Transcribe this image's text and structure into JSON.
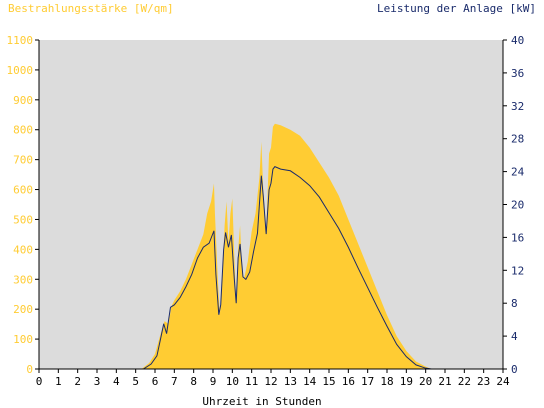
{
  "chart_data": {
    "type": "area",
    "title_left": "Bestrahlungsstärke [W/qm]",
    "title_right": "Leistung der Anlage [kW]",
    "xlabel": "Uhrzeit in Stunden",
    "x_ticks": [
      "0",
      "1",
      "2",
      "3",
      "4",
      "5",
      "6",
      "7",
      "8",
      "9",
      "10",
      "11",
      "12",
      "13",
      "14",
      "15",
      "16",
      "17",
      "18",
      "19",
      "20",
      "21",
      "22",
      "23",
      "24"
    ],
    "y_left_ticks": [
      "0",
      "100",
      "200",
      "300",
      "400",
      "500",
      "600",
      "700",
      "800",
      "900",
      "1000",
      "1100"
    ],
    "y_right_ticks": [
      "0",
      "4",
      "8",
      "12",
      "16",
      "20",
      "24",
      "28",
      "32",
      "36",
      "40"
    ],
    "xlim": [
      0,
      24
    ],
    "ylim_left": [
      0,
      1100
    ],
    "ylim_right": [
      0,
      40
    ],
    "grid": false,
    "series": [
      {
        "name": "Bestrahlungsstärke [W/qm]",
        "axis": "left",
        "color": "#ffcc33",
        "points": [
          [
            0,
            0
          ],
          [
            5.3,
            0
          ],
          [
            5.7,
            20
          ],
          [
            6.0,
            50
          ],
          [
            6.3,
            120
          ],
          [
            6.5,
            160
          ],
          [
            6.7,
            150
          ],
          [
            6.85,
            210
          ],
          [
            7.0,
            230
          ],
          [
            7.3,
            260
          ],
          [
            7.6,
            300
          ],
          [
            7.9,
            350
          ],
          [
            8.2,
            400
          ],
          [
            8.5,
            450
          ],
          [
            8.7,
            520
          ],
          [
            8.9,
            560
          ],
          [
            9.05,
            620
          ],
          [
            9.1,
            520
          ],
          [
            9.25,
            300
          ],
          [
            9.35,
            180
          ],
          [
            9.45,
            260
          ],
          [
            9.6,
            480
          ],
          [
            9.7,
            560
          ],
          [
            9.8,
            420
          ],
          [
            9.9,
            520
          ],
          [
            10.0,
            570
          ],
          [
            10.1,
            380
          ],
          [
            10.2,
            220
          ],
          [
            10.3,
            400
          ],
          [
            10.4,
            480
          ],
          [
            10.5,
            330
          ],
          [
            10.6,
            300
          ],
          [
            10.8,
            360
          ],
          [
            11.0,
            460
          ],
          [
            11.2,
            520
          ],
          [
            11.4,
            640
          ],
          [
            11.5,
            760
          ],
          [
            11.6,
            600
          ],
          [
            11.75,
            460
          ],
          [
            11.9,
            720
          ],
          [
            12.0,
            740
          ],
          [
            12.1,
            810
          ],
          [
            12.2,
            820
          ],
          [
            12.5,
            815
          ],
          [
            13.0,
            800
          ],
          [
            13.5,
            780
          ],
          [
            14.0,
            740
          ],
          [
            14.5,
            690
          ],
          [
            15.0,
            640
          ],
          [
            15.5,
            580
          ],
          [
            16.0,
            500
          ],
          [
            16.5,
            420
          ],
          [
            17.0,
            340
          ],
          [
            17.5,
            260
          ],
          [
            18.0,
            180
          ],
          [
            18.5,
            110
          ],
          [
            19.0,
            60
          ],
          [
            19.5,
            25
          ],
          [
            20.0,
            8
          ],
          [
            20.3,
            0
          ],
          [
            24,
            0
          ]
        ]
      },
      {
        "name": "Leistung der Anlage [kW]",
        "axis": "right",
        "color": "#1a2b6b",
        "points": [
          [
            0,
            0
          ],
          [
            5.4,
            0
          ],
          [
            5.8,
            0.6
          ],
          [
            6.1,
            1.6
          ],
          [
            6.3,
            3.8
          ],
          [
            6.45,
            5.5
          ],
          [
            6.6,
            4.3
          ],
          [
            6.8,
            7.5
          ],
          [
            7.0,
            7.8
          ],
          [
            7.3,
            8.7
          ],
          [
            7.6,
            10.0
          ],
          [
            7.9,
            11.5
          ],
          [
            8.2,
            13.5
          ],
          [
            8.5,
            14.8
          ],
          [
            8.8,
            15.3
          ],
          [
            8.95,
            16.2
          ],
          [
            9.05,
            16.8
          ],
          [
            9.15,
            11.5
          ],
          [
            9.3,
            6.6
          ],
          [
            9.4,
            7.8
          ],
          [
            9.55,
            14.5
          ],
          [
            9.65,
            16.6
          ],
          [
            9.8,
            14.8
          ],
          [
            9.95,
            16.3
          ],
          [
            10.1,
            11.0
          ],
          [
            10.2,
            8.0
          ],
          [
            10.3,
            13.5
          ],
          [
            10.4,
            15.2
          ],
          [
            10.55,
            11.2
          ],
          [
            10.7,
            10.9
          ],
          [
            10.9,
            11.8
          ],
          [
            11.1,
            14.3
          ],
          [
            11.3,
            16.5
          ],
          [
            11.5,
            23.5
          ],
          [
            11.6,
            21.0
          ],
          [
            11.75,
            16.4
          ],
          [
            11.9,
            21.8
          ],
          [
            12.0,
            22.6
          ],
          [
            12.1,
            24.3
          ],
          [
            12.2,
            24.6
          ],
          [
            12.5,
            24.3
          ],
          [
            13.0,
            24.1
          ],
          [
            13.5,
            23.3
          ],
          [
            14.0,
            22.3
          ],
          [
            14.5,
            20.9
          ],
          [
            15.0,
            19.0
          ],
          [
            15.5,
            17.1
          ],
          [
            16.0,
            14.8
          ],
          [
            16.5,
            12.3
          ],
          [
            17.0,
            9.9
          ],
          [
            17.5,
            7.5
          ],
          [
            18.0,
            5.2
          ],
          [
            18.5,
            3.0
          ],
          [
            19.0,
            1.5
          ],
          [
            19.5,
            0.5
          ],
          [
            20.0,
            0.1
          ],
          [
            20.3,
            0
          ],
          [
            24,
            0
          ]
        ]
      }
    ],
    "colors": {
      "plot_background": "#dcdcdc",
      "left_axis_text": "#ffcc33",
      "right_axis_text": "#1a2b6b",
      "x_axis_text": "#000000"
    }
  }
}
